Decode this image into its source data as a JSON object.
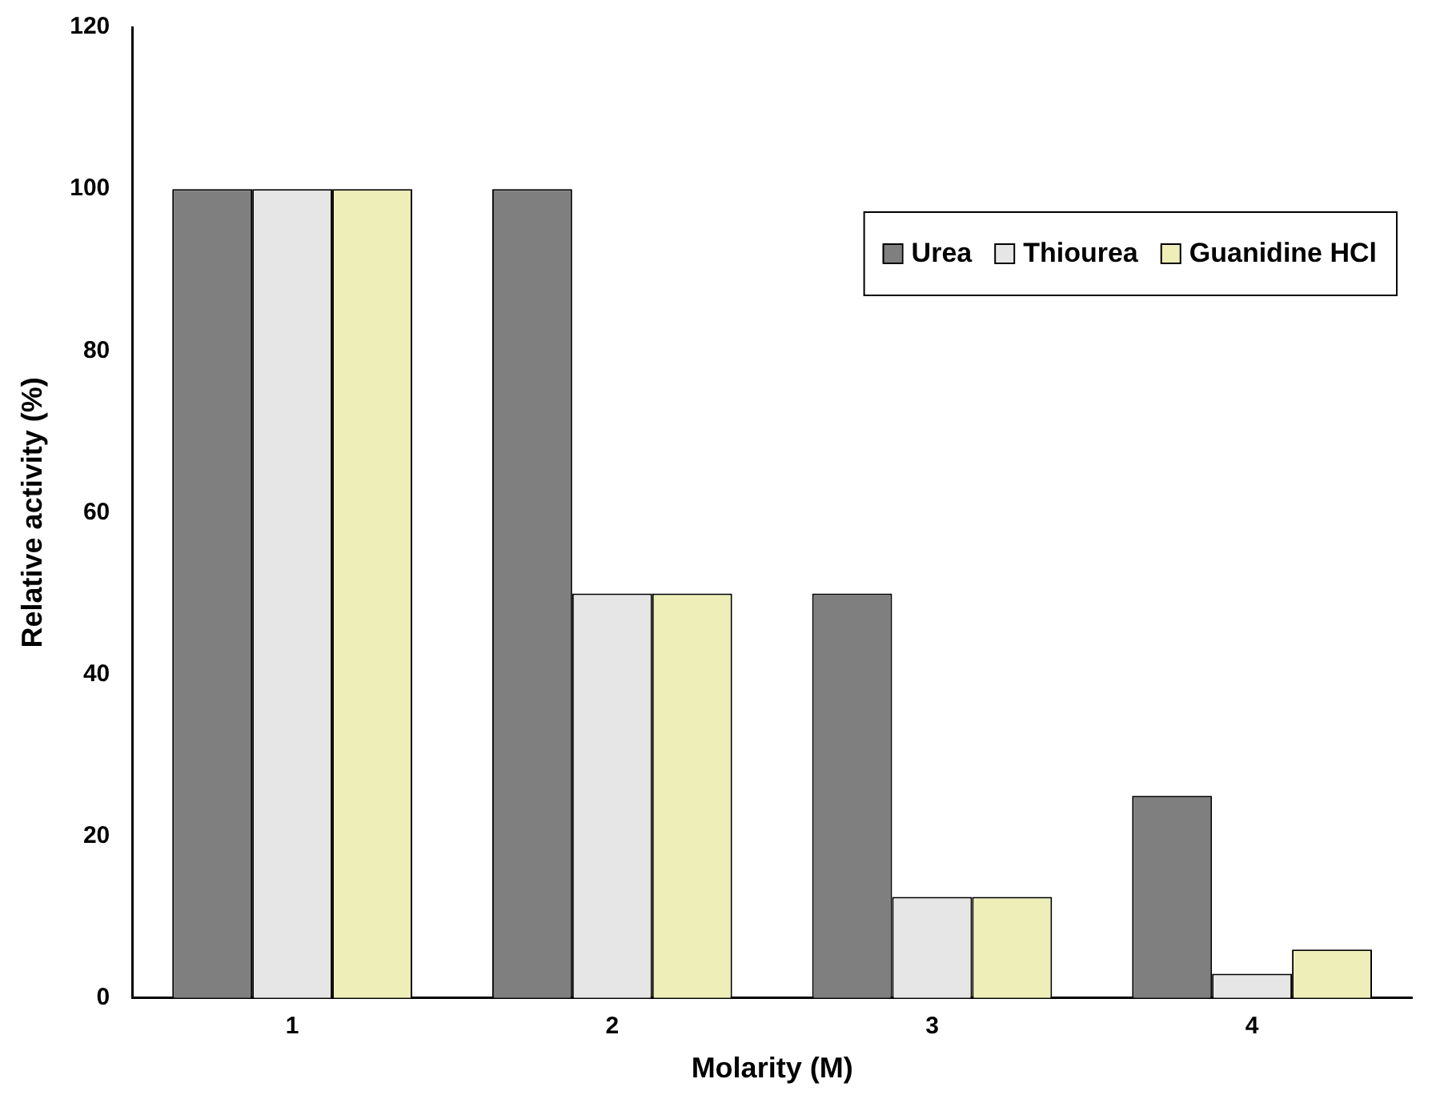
{
  "chart_data": {
    "type": "bar",
    "xlabel": "Molarity (M)",
    "ylabel": "Relative activity (%)",
    "categories": [
      "1",
      "2",
      "3",
      "4"
    ],
    "series": [
      {
        "name": "Urea",
        "color": "#7f7f7f",
        "values": [
          100,
          100,
          50,
          25
        ]
      },
      {
        "name": "Thiourea",
        "color": "#e6e6e6",
        "values": [
          100,
          50,
          12.5,
          3
        ]
      },
      {
        "name": "Guanidine HCl",
        "color": "#eeeeb8",
        "values": [
          100,
          50,
          12.5,
          6
        ]
      }
    ],
    "ylim": [
      0,
      120
    ],
    "yticks": [
      0,
      20,
      40,
      60,
      80,
      100,
      120
    ],
    "grid": false,
    "legend": "top right"
  }
}
